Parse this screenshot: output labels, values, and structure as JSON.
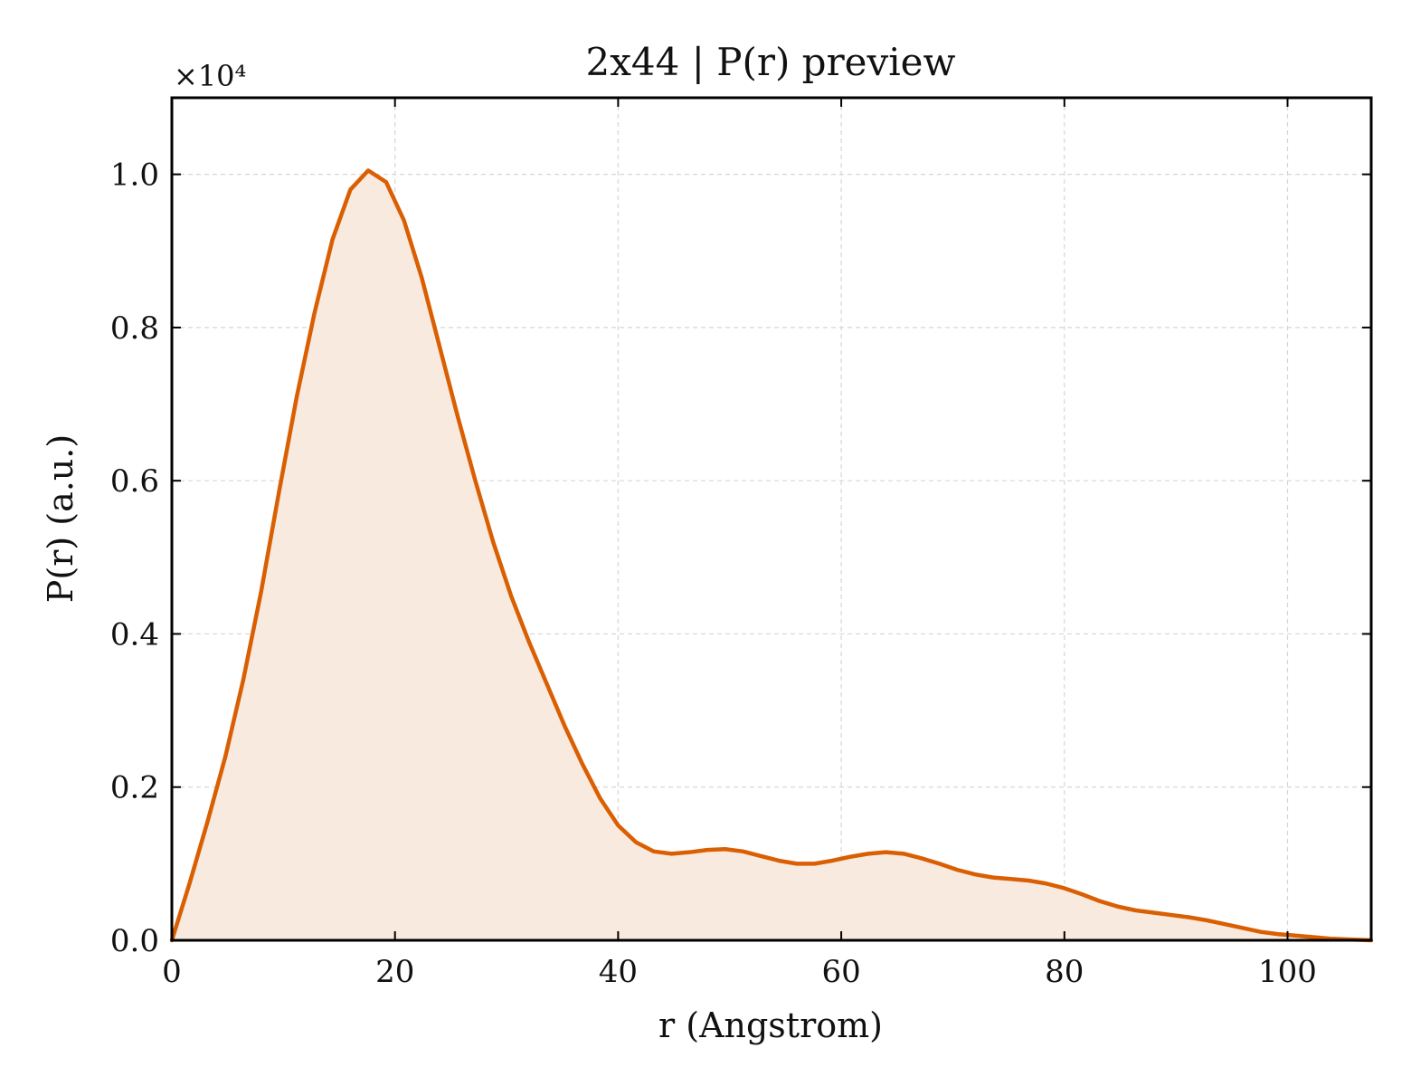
{
  "chart_data": {
    "type": "area",
    "title": "2x44 | P(r) preview",
    "xlabel": "r (Angstrom)",
    "ylabel": "P(r) (a.u.)",
    "y_offset_label": "×10⁴",
    "xlim": [
      0,
      107.5
    ],
    "ylim": [
      0,
      1.1
    ],
    "xticks": [
      0,
      20,
      40,
      60,
      80,
      100
    ],
    "yticks": [
      0.0,
      0.2,
      0.4,
      0.6,
      0.8,
      1.0
    ],
    "xtick_labels": [
      "0",
      "20",
      "40",
      "60",
      "80",
      "100"
    ],
    "ytick_labels": [
      "0.0",
      "0.2",
      "0.4",
      "0.6",
      "0.8",
      "1.0"
    ],
    "grid": true,
    "line_color": "#d95f02",
    "fill_color": "#f9eae0",
    "series": [
      {
        "x": [
          0,
          1.6,
          3.2,
          4.8,
          6.4,
          8.0,
          9.6,
          11.2,
          12.8,
          14.4,
          16.0,
          17.6,
          19.2,
          20.8,
          22.4,
          24.0,
          25.6,
          27.2,
          28.8,
          30.4,
          32.0,
          33.6,
          35.2,
          36.8,
          38.4,
          40.0,
          41.6,
          43.2,
          44.8,
          46.4,
          48.0,
          49.6,
          51.2,
          52.8,
          54.4,
          56.0,
          57.6,
          59.2,
          60.8,
          62.4,
          64.0,
          65.6,
          67.2,
          68.8,
          70.4,
          72.0,
          73.6,
          75.2,
          76.8,
          78.4,
          80.0,
          81.6,
          83.2,
          84.8,
          86.4,
          88.0,
          89.6,
          91.2,
          92.8,
          94.4,
          96.0,
          97.6,
          99.2,
          100.8,
          102.4,
          104.0,
          105.6,
          107.5
        ],
        "y": [
          0.0,
          0.075,
          0.155,
          0.24,
          0.34,
          0.455,
          0.585,
          0.71,
          0.82,
          0.915,
          0.98,
          1.005,
          0.99,
          0.94,
          0.865,
          0.775,
          0.685,
          0.6,
          0.52,
          0.45,
          0.39,
          0.335,
          0.28,
          0.23,
          0.185,
          0.15,
          0.128,
          0.116,
          0.113,
          0.115,
          0.118,
          0.119,
          0.116,
          0.11,
          0.104,
          0.1,
          0.1,
          0.104,
          0.109,
          0.113,
          0.115,
          0.113,
          0.107,
          0.1,
          0.092,
          0.086,
          0.082,
          0.08,
          0.078,
          0.074,
          0.068,
          0.06,
          0.051,
          0.044,
          0.039,
          0.036,
          0.033,
          0.03,
          0.026,
          0.021,
          0.016,
          0.011,
          0.008,
          0.006,
          0.004,
          0.002,
          0.001,
          0.0
        ]
      }
    ]
  }
}
